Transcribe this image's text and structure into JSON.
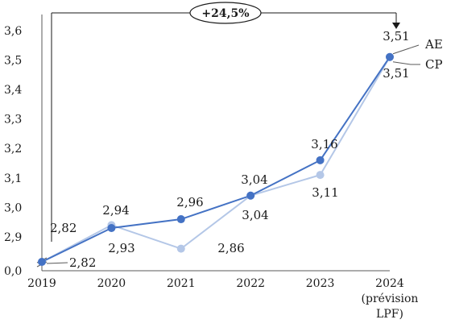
{
  "chart_data": {
    "type": "line",
    "title": "",
    "xlabel": "",
    "ylabel": "",
    "categories": [
      "2019",
      "2020",
      "2021",
      "2022",
      "2023",
      "2024"
    ],
    "category_sublabels": [
      "",
      "",
      "",
      "",
      "",
      "(prévision"
    ],
    "category_sublabels2": [
      "",
      "",
      "",
      "",
      "",
      "LPF)"
    ],
    "y_ticks": [
      "0,0",
      "2,9",
      "3,0",
      "3,1",
      "3,2",
      "3,3",
      "3,4",
      "3,5",
      "3,6"
    ],
    "ylim": [
      2.8,
      3.6
    ],
    "axis_break": true,
    "series": [
      {
        "name": "AE",
        "color": "#4472c4",
        "values": [
          2.82,
          2.93,
          2.96,
          3.04,
          3.16,
          3.51
        ],
        "labels": [
          "2,82",
          "2,93",
          "2,96",
          "3,04",
          "3,16",
          "3,51"
        ]
      },
      {
        "name": "CP",
        "color": "#b4c7e7",
        "values": [
          2.82,
          2.94,
          2.86,
          3.04,
          3.11,
          3.51
        ],
        "labels": [
          "2,82",
          "2,94",
          "2,86",
          "3,04",
          "3,11",
          "3,51"
        ]
      }
    ],
    "annotation": "+24,5%",
    "grid": false,
    "legend": "inline-right"
  }
}
